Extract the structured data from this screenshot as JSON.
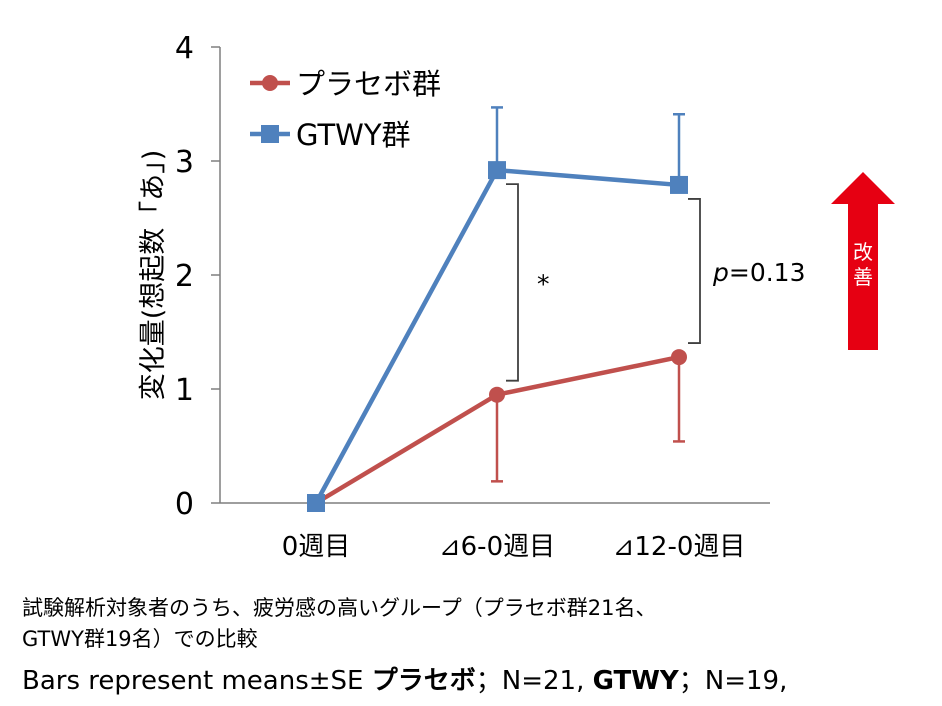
{
  "chart_data": {
    "type": "line",
    "title": "",
    "ylabel": "変化量(想起数「あ」)",
    "xlabel": "",
    "categories": [
      "0週目",
      "⊿6-0週目",
      "⊿12-0週目"
    ],
    "ylim": [
      0,
      4
    ],
    "yticks": [
      "0",
      "1",
      "2",
      "3",
      "4"
    ],
    "grid": false,
    "legend_position": "top-left",
    "series": [
      {
        "name": "プラセボ群",
        "color": "#c0504d",
        "marker": "circle",
        "values": [
          0,
          0.95,
          1.28
        ],
        "error": [
          0,
          0.76,
          0.74
        ]
      },
      {
        "name": "GTWY群",
        "color": "#4f81bd",
        "marker": "square",
        "values": [
          0,
          2.92,
          2.79
        ],
        "error": [
          0,
          0.55,
          0.62
        ]
      }
    ],
    "annotations": [
      {
        "between": "⊿6-0週目",
        "text": "*"
      },
      {
        "between": "⊿12-0週目",
        "text_italic": "p",
        "text": "=0.13"
      }
    ],
    "arrow_label_top": "改",
    "arrow_label_bottom": "善",
    "arrow_color": "#e60012"
  },
  "caption": {
    "line1": "試験解析対象者のうち、疲労感の高いグループ（プラセボ群21名、",
    "line2": "GTWY群19名）での比較",
    "line3_prefix": "Bars represent means±SE ",
    "line3_placebo": "プラセボ",
    "line3_mid": "；N=21, ",
    "line3_gtwy": "GTWY",
    "line3_suffix": "；N=19,"
  }
}
